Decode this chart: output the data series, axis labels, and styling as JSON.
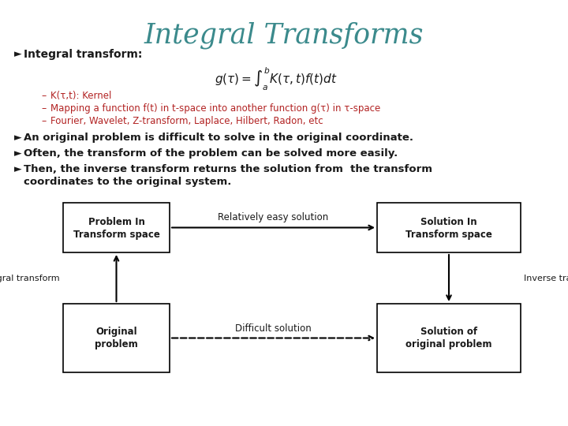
{
  "title": "Integral Transforms",
  "title_color": "#3B8A8C",
  "title_fontsize": 26,
  "bg_color": "#ffffff",
  "black": "#1a1a1a",
  "red_color": "#B22222",
  "bullet_symbol": "►",
  "sub_bullet": "–",
  "bullet1_label": "Integral transform:",
  "sub1": "K(τ,t): Kernel",
  "sub2": "Mapping a function f(t) in t-space into another function g(τ) in τ-space",
  "sub3": "Fourier, Wavelet, Z-transform, Laplace, Hilbert, Radon, etc",
  "box1_line1": "Problem In",
  "box1_line2": "Transform space",
  "box2_label": "Relatively easy solution",
  "box3_line1": "Solution In",
  "box3_line2": "Transform space",
  "box4_line1": "Original",
  "box4_line2": "problem",
  "box5_label": "Difficult solution",
  "box6_line1": "Solution of",
  "box6_line2": "original problem",
  "label_integral": "Integral transform",
  "label_inverse": "Inverse transform"
}
